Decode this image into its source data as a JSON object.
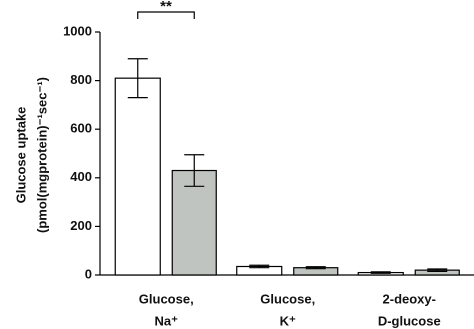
{
  "chart_data": {
    "type": "bar",
    "y_label": [
      "Glucose uptake",
      "(pmol(mgprotein)⁻¹sec⁻¹)"
    ],
    "categories": [
      [
        "Glucose,",
        "Na⁺"
      ],
      [
        "Glucose,",
        "K⁺"
      ],
      [
        "2-deoxy-",
        "D-glucose"
      ]
    ],
    "series": [
      {
        "color": "#ffffff",
        "values": [
          810,
          35,
          10
        ],
        "errors": [
          80,
          5,
          3
        ]
      },
      {
        "color": "#bfc4c0",
        "values": [
          430,
          30,
          20
        ],
        "errors": [
          65,
          4,
          5
        ]
      }
    ],
    "ylim": [
      0,
      1000
    ],
    "yticks": [
      0,
      200,
      400,
      600,
      800,
      1000
    ],
    "annotation": "**"
  }
}
